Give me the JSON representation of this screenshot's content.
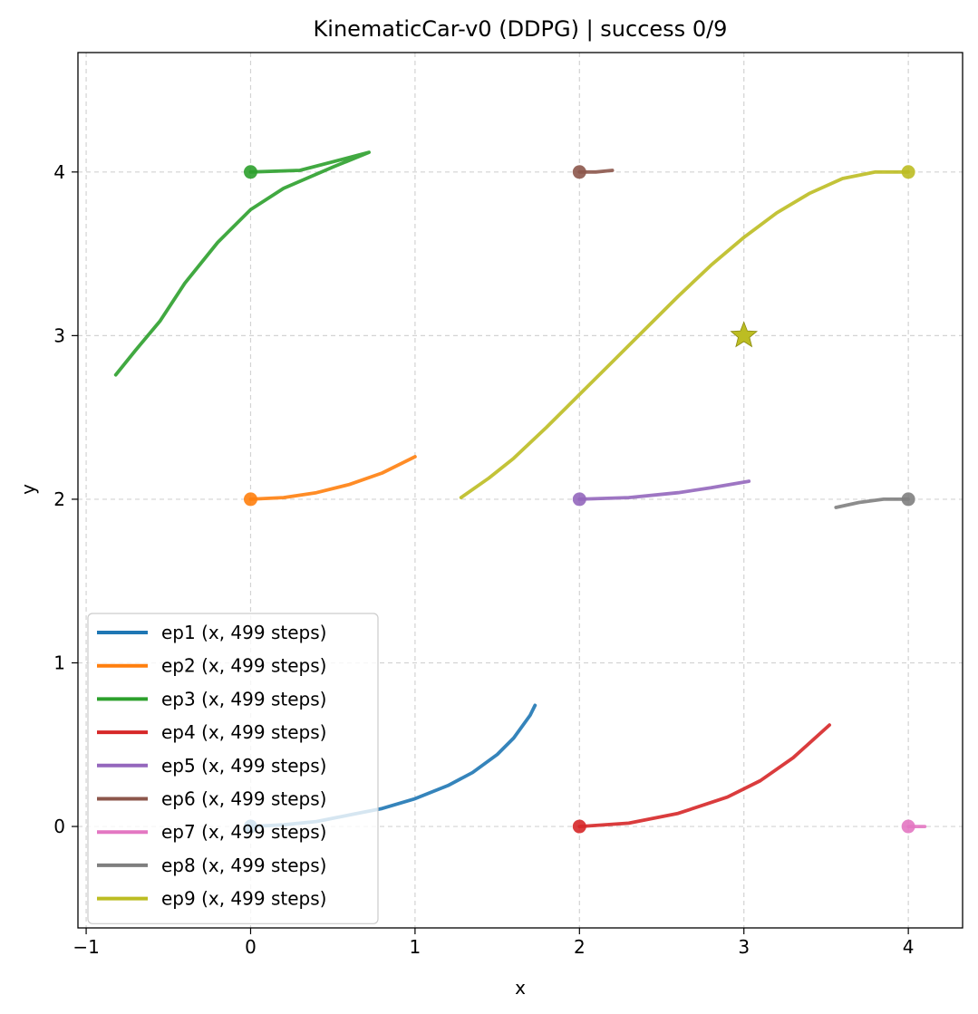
{
  "chart_data": {
    "type": "line",
    "title": "KinematicCar-v0 (DDPG) | success 0/9",
    "xlabel": "x",
    "ylabel": "y",
    "xlim": [
      -1.05,
      4.33
    ],
    "ylim": [
      -0.62,
      4.73
    ],
    "xticks": [
      -1,
      0,
      1,
      2,
      3,
      4
    ],
    "yticks": [
      0,
      1,
      2,
      3,
      4
    ],
    "grid": true,
    "grid_style": "dashed",
    "legend_position": "lower-left",
    "goal": {
      "x": 3,
      "y": 3,
      "marker": "star",
      "color": "#bcbd22"
    },
    "series": [
      {
        "name": "ep1 (x, 499 steps)",
        "color": "#1f77b4",
        "start": [
          0,
          0
        ],
        "x": [
          0,
          0.2,
          0.4,
          0.6,
          0.8,
          1.0,
          1.2,
          1.35,
          1.5,
          1.6,
          1.7,
          1.73
        ],
        "y": [
          0,
          0.01,
          0.03,
          0.07,
          0.11,
          0.17,
          0.25,
          0.33,
          0.44,
          0.54,
          0.68,
          0.74
        ]
      },
      {
        "name": "ep2 (x, 499 steps)",
        "color": "#ff7f0e",
        "start": [
          0,
          2
        ],
        "x": [
          0,
          0.2,
          0.4,
          0.6,
          0.8,
          1.0
        ],
        "y": [
          2.0,
          2.01,
          2.04,
          2.09,
          2.16,
          2.26
        ]
      },
      {
        "name": "ep3 (x, 499 steps)",
        "color": "#2ca02c",
        "start": [
          0,
          4
        ],
        "x": [
          0,
          0.3,
          0.72,
          0.5,
          0.2,
          0,
          -0.2,
          -0.4,
          -0.55,
          -0.7,
          -0.82
        ],
        "y": [
          4.0,
          4.01,
          4.12,
          4.03,
          3.9,
          3.77,
          3.57,
          3.32,
          3.09,
          2.91,
          2.76
        ]
      },
      {
        "name": "ep4 (x, 499 steps)",
        "color": "#d62728",
        "start": [
          2,
          0
        ],
        "x": [
          2,
          2.3,
          2.6,
          2.9,
          3.1,
          3.3,
          3.52
        ],
        "y": [
          0,
          0.02,
          0.08,
          0.18,
          0.28,
          0.42,
          0.62
        ]
      },
      {
        "name": "ep5 (x, 499 steps)",
        "color": "#9467bd",
        "start": [
          2,
          2
        ],
        "x": [
          2,
          2.3,
          2.6,
          2.8,
          3.03
        ],
        "y": [
          2.0,
          2.01,
          2.04,
          2.07,
          2.11
        ]
      },
      {
        "name": "ep6 (x, 499 steps)",
        "color": "#8c564b",
        "start": [
          2,
          4
        ],
        "x": [
          2,
          2.1,
          2.2
        ],
        "y": [
          4.0,
          4.0,
          4.01
        ]
      },
      {
        "name": "ep7 (x, 499 steps)",
        "color": "#e377c2",
        "start": [
          4,
          0
        ],
        "x": [
          4,
          4.05,
          4.1
        ],
        "y": [
          0,
          0.0,
          0.0
        ]
      },
      {
        "name": "ep8 (x, 499 steps)",
        "color": "#7f7f7f",
        "start": [
          4,
          2
        ],
        "x": [
          4,
          3.85,
          3.7,
          3.56
        ],
        "y": [
          2.0,
          2.0,
          1.98,
          1.95
        ]
      },
      {
        "name": "ep9 (x, 499 steps)",
        "color": "#bcbd22",
        "start": [
          4,
          4
        ],
        "x": [
          4,
          3.8,
          3.6,
          3.4,
          3.2,
          3.0,
          2.8,
          2.6,
          2.4,
          2.2,
          2.0,
          1.8,
          1.6,
          1.45,
          1.28
        ],
        "y": [
          4.0,
          4.0,
          3.96,
          3.87,
          3.75,
          3.6,
          3.43,
          3.24,
          3.04,
          2.84,
          2.64,
          2.44,
          2.25,
          2.13,
          2.01
        ]
      }
    ]
  }
}
